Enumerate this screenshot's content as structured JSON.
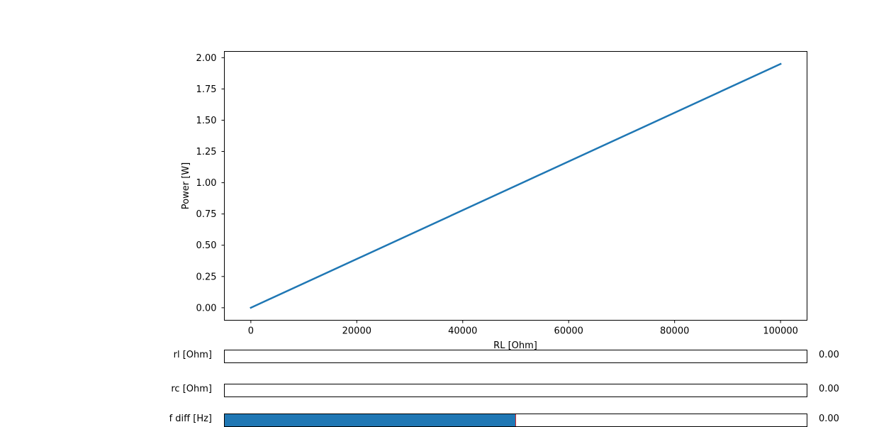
{
  "colors": {
    "line": "#1f77b4",
    "slider_fill": "#1f77b4",
    "slider_marker": "#d62728"
  },
  "chart_data": {
    "type": "line",
    "xlabel": "RL [Ohm]",
    "ylabel": "Power [W]",
    "xlim": [
      -5000,
      105000
    ],
    "ylim": [
      -0.1,
      2.05
    ],
    "xticks": [
      0,
      20000,
      40000,
      60000,
      80000,
      100000
    ],
    "xtick_labels": [
      "0",
      "20000",
      "40000",
      "60000",
      "80000",
      "100000"
    ],
    "yticks": [
      0,
      0.25,
      0.5,
      0.75,
      1.0,
      1.25,
      1.5,
      1.75,
      2.0
    ],
    "ytick_labels": [
      "0.00",
      "0.25",
      "0.50",
      "0.75",
      "1.00",
      "1.25",
      "1.50",
      "1.75",
      "2.00"
    ],
    "grid": false,
    "series": [
      {
        "x": [
          0,
          100000
        ],
        "y": [
          0.0,
          1.95
        ]
      }
    ]
  },
  "sliders": [
    {
      "key": "rl",
      "label": "rl [Ohm]",
      "value_text": "0.00",
      "fill_fraction": 0.0,
      "marker": false
    },
    {
      "key": "rc",
      "label": "rc [Ohm]",
      "value_text": "0.00",
      "fill_fraction": 0.0,
      "marker": false
    },
    {
      "key": "fdiff",
      "label": "f diff [Hz]",
      "value_text": "0.00",
      "fill_fraction": 0.5,
      "marker": true
    }
  ]
}
